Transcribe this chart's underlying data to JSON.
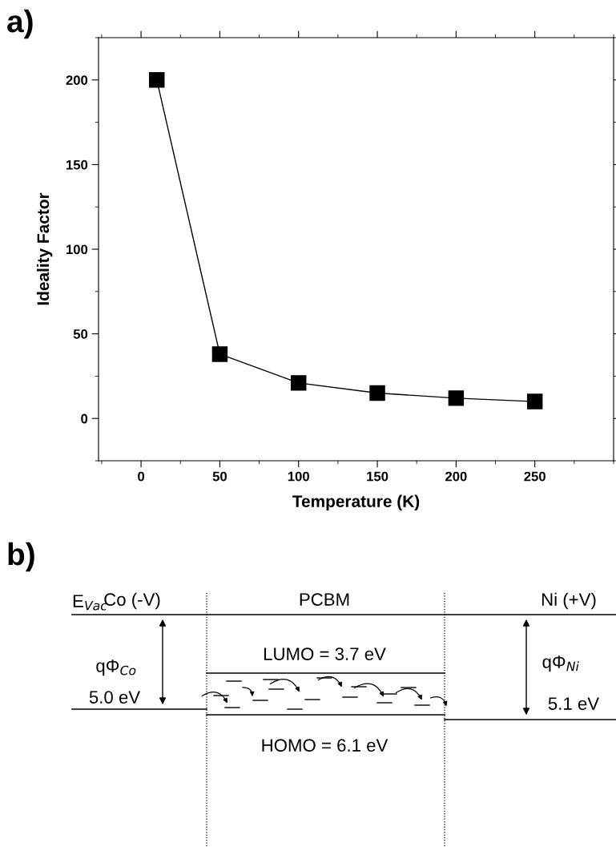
{
  "chart_data": [
    {
      "type": "line",
      "title": "a)",
      "xlabel": "Temperature (K)",
      "ylabel": "Ideality Factor",
      "x": [
        10,
        50,
        100,
        150,
        200,
        250
      ],
      "series": [
        {
          "color": "#000000",
          "values": [
            200,
            38,
            21,
            15,
            12,
            10
          ]
        }
      ],
      "marker": "square",
      "line_style": "solid",
      "xlim": [
        -27,
        300
      ],
      "ylim": [
        -25,
        225
      ],
      "xticks": [
        0,
        50,
        100,
        150,
        200,
        250
      ],
      "yticks": [
        0,
        50,
        100,
        150,
        200
      ]
    },
    {
      "type": "other",
      "title": "b)",
      "annotations": [
        "E$_{Vac}$",
        "Co (-V)",
        "PCBM",
        "Ni (+V)",
        "qΦ$_{Co}$",
        "5.0 eV",
        "LUMO = 3.7 eV",
        "HOMO = 6.1 eV",
        "qΦ$_{Ni}$",
        "5.1 eV"
      ]
    }
  ]
}
